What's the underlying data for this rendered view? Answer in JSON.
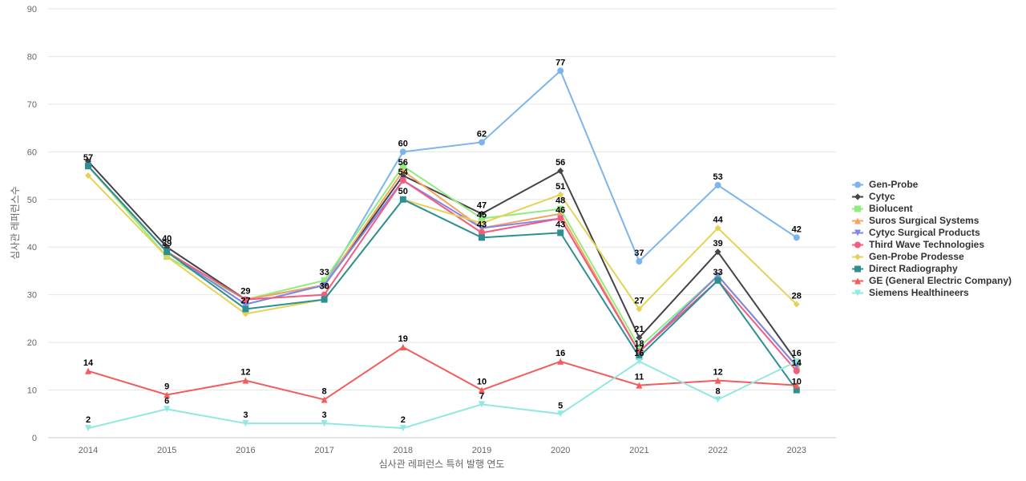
{
  "chart_data": {
    "type": "line",
    "xlabel": "심사관 레퍼런스 특허 발행 연도",
    "ylabel": "심사관 레퍼런스수",
    "ylim": [
      0,
      90
    ],
    "yticks": [
      0,
      10,
      20,
      30,
      40,
      50,
      60,
      70,
      80,
      90
    ],
    "grid": true,
    "legend_position": "right",
    "categories": [
      "2014",
      "2015",
      "2016",
      "2017",
      "2018",
      "2019",
      "2020",
      "2021",
      "2022",
      "2023"
    ],
    "series": [
      {
        "name": "Gen-Probe",
        "color": "#7cb5ec",
        "marker": "circle",
        "values": [
          57,
          39,
          28,
          32,
          60,
          62,
          77,
          37,
          53,
          42
        ],
        "labeled": [
          true,
          false,
          false,
          false,
          true,
          true,
          true,
          true,
          true,
          true
        ]
      },
      {
        "name": "Cytyc",
        "color": "#434348",
        "marker": "diamond",
        "values": [
          58,
          40,
          29,
          32,
          55,
          47,
          56,
          21,
          39,
          16
        ],
        "labeled": [
          false,
          true,
          false,
          false,
          false,
          true,
          true,
          true,
          true,
          true
        ]
      },
      {
        "name": "Biolucent",
        "color": "#90ed7d",
        "marker": "square",
        "values": [
          57,
          38,
          29,
          33,
          57,
          46,
          48,
          19,
          34,
          15
        ],
        "labeled": [
          false,
          false,
          false,
          true,
          false,
          false,
          true,
          false,
          false,
          false
        ]
      },
      {
        "name": "Suros Surgical Systems",
        "color": "#f7a35c",
        "marker": "triangle",
        "values": [
          57,
          39,
          29,
          32,
          56,
          44,
          47,
          18,
          34,
          15
        ],
        "labeled": [
          false,
          false,
          false,
          false,
          true,
          false,
          false,
          false,
          false,
          false
        ]
      },
      {
        "name": "Cytyc Surgical Products",
        "color": "#8085e9",
        "marker": "triangle-down",
        "values": [
          57,
          39,
          28,
          32,
          54,
          44,
          46,
          18,
          34,
          15
        ],
        "labeled": [
          false,
          false,
          false,
          false,
          true,
          false,
          false,
          false,
          false,
          false
        ]
      },
      {
        "name": "Third Wave Technologies",
        "color": "#f15c80",
        "marker": "circle",
        "values": [
          57,
          39,
          29,
          30,
          54,
          43,
          46,
          18,
          33,
          14
        ],
        "labeled": [
          false,
          false,
          true,
          true,
          false,
          true,
          true,
          true,
          true,
          true
        ]
      },
      {
        "name": "Gen-Probe Prodesse",
        "color": "#e4d354",
        "marker": "diamond",
        "values": [
          55,
          38,
          26,
          29,
          50,
          45,
          51,
          27,
          44,
          28
        ],
        "labeled": [
          false,
          false,
          false,
          false,
          false,
          true,
          true,
          true,
          true,
          true
        ]
      },
      {
        "name": "Direct Radiography",
        "color": "#2b908f",
        "marker": "square",
        "values": [
          57,
          39,
          27,
          29,
          50,
          42,
          43,
          17,
          33,
          10
        ],
        "labeled": [
          false,
          true,
          true,
          false,
          true,
          false,
          true,
          true,
          false,
          true
        ]
      },
      {
        "name": "GE (General Electric Company)",
        "color": "#f45b5b",
        "marker": "triangle",
        "values": [
          14,
          9,
          12,
          8,
          19,
          10,
          16,
          11,
          12,
          11
        ],
        "labeled": [
          true,
          true,
          true,
          true,
          true,
          true,
          true,
          true,
          true,
          false
        ]
      },
      {
        "name": "Siemens Healthineers",
        "color": "#91e8e1",
        "marker": "triangle-down",
        "values": [
          2,
          6,
          3,
          3,
          2,
          7,
          5,
          16,
          8,
          16
        ],
        "labeled": [
          true,
          true,
          true,
          true,
          true,
          true,
          true,
          true,
          true,
          false
        ]
      }
    ]
  }
}
